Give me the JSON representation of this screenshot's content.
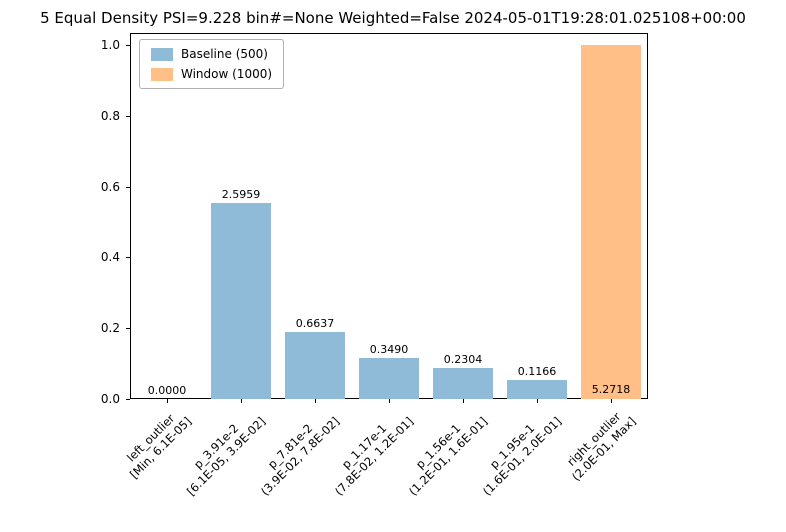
{
  "header": {
    "title": "5 Equal Density PSI=9.228 bin#=None Weighted=False 2024-05-01T19:28:01.025108+00:00"
  },
  "chart_data": {
    "type": "bar",
    "title": "5 Equal Density PSI=9.228 bin#=None Weighted=False 2024-05-01T19:28:01.025108+00:00",
    "xlabel": "",
    "ylabel": "",
    "ylim": [
      0,
      1.05
    ],
    "yticks": [
      "0.0",
      "0.2",
      "0.4",
      "0.6",
      "0.8",
      "1.0"
    ],
    "grid": false,
    "legend_position": "upper left",
    "legend": [
      {
        "label": "Baseline (500)",
        "series": "baseline",
        "color": "#8fbbd9"
      },
      {
        "label": "Window (1000)",
        "series": "window",
        "color": "#ffbf86"
      }
    ],
    "colors": {
      "baseline": "#8fbbd9",
      "window": "#ffbf86"
    },
    "categories": [
      "left_outlier\n[Min, 6.1E-05]",
      "p_3.91e-2\n[6.1E-05, 3.9E-02]",
      "p_7.81e-2\n(3.9E-02, 7.8E-02]",
      "p_1.17e-1\n(7.8E-02, 1.2E-01]",
      "p_1.56e-1\n(1.2E-01, 1.6E-01]",
      "p_1.95e-1\n(1.6E-01, 2.0E-01]",
      "right_outlier\n(2.0E-01, Max]"
    ],
    "bars": [
      {
        "height": 0.0,
        "label": "0.0000",
        "series": "baseline",
        "label_pos": "top"
      },
      {
        "height": 0.555,
        "label": "2.5959",
        "series": "baseline",
        "label_pos": "top"
      },
      {
        "height": 0.19,
        "label": "0.6637",
        "series": "baseline",
        "label_pos": "top"
      },
      {
        "height": 0.115,
        "label": "0.3490",
        "series": "baseline",
        "label_pos": "top"
      },
      {
        "height": 0.087,
        "label": "0.2304",
        "series": "baseline",
        "label_pos": "top"
      },
      {
        "height": 0.055,
        "label": "0.1166",
        "series": "baseline",
        "label_pos": "top"
      },
      {
        "height": 1.0,
        "label": "5.2718",
        "series": "window",
        "label_pos": "bottom"
      }
    ]
  }
}
